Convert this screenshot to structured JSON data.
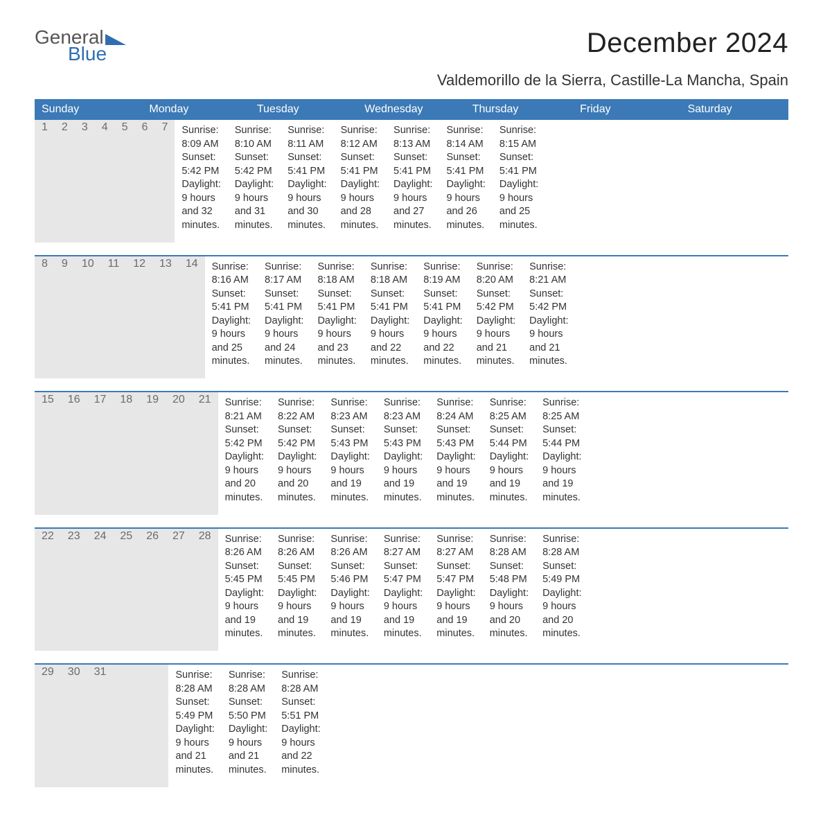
{
  "logo": {
    "line1": "General",
    "line2": "Blue",
    "tri_color": "#2f6fb0"
  },
  "title": "December 2024",
  "location": "Valdemorillo de la Sierra, Castille-La Mancha, Spain",
  "colors": {
    "header_bg": "#3b79b7",
    "header_text": "#ffffff",
    "daynum_bg": "#e7e7e7",
    "daynum_text": "#6a6a6a",
    "week_border": "#3b79b7",
    "body_text": "#333333",
    "background": "#ffffff"
  },
  "day_headers": [
    "Sunday",
    "Monday",
    "Tuesday",
    "Wednesday",
    "Thursday",
    "Friday",
    "Saturday"
  ],
  "weeks": [
    [
      {
        "n": "1",
        "sunrise": "Sunrise: 8:09 AM",
        "sunset": "Sunset: 5:42 PM",
        "d1": "Daylight: 9 hours",
        "d2": "and 32 minutes."
      },
      {
        "n": "2",
        "sunrise": "Sunrise: 8:10 AM",
        "sunset": "Sunset: 5:42 PM",
        "d1": "Daylight: 9 hours",
        "d2": "and 31 minutes."
      },
      {
        "n": "3",
        "sunrise": "Sunrise: 8:11 AM",
        "sunset": "Sunset: 5:41 PM",
        "d1": "Daylight: 9 hours",
        "d2": "and 30 minutes."
      },
      {
        "n": "4",
        "sunrise": "Sunrise: 8:12 AM",
        "sunset": "Sunset: 5:41 PM",
        "d1": "Daylight: 9 hours",
        "d2": "and 28 minutes."
      },
      {
        "n": "5",
        "sunrise": "Sunrise: 8:13 AM",
        "sunset": "Sunset: 5:41 PM",
        "d1": "Daylight: 9 hours",
        "d2": "and 27 minutes."
      },
      {
        "n": "6",
        "sunrise": "Sunrise: 8:14 AM",
        "sunset": "Sunset: 5:41 PM",
        "d1": "Daylight: 9 hours",
        "d2": "and 26 minutes."
      },
      {
        "n": "7",
        "sunrise": "Sunrise: 8:15 AM",
        "sunset": "Sunset: 5:41 PM",
        "d1": "Daylight: 9 hours",
        "d2": "and 25 minutes."
      }
    ],
    [
      {
        "n": "8",
        "sunrise": "Sunrise: 8:16 AM",
        "sunset": "Sunset: 5:41 PM",
        "d1": "Daylight: 9 hours",
        "d2": "and 25 minutes."
      },
      {
        "n": "9",
        "sunrise": "Sunrise: 8:17 AM",
        "sunset": "Sunset: 5:41 PM",
        "d1": "Daylight: 9 hours",
        "d2": "and 24 minutes."
      },
      {
        "n": "10",
        "sunrise": "Sunrise: 8:18 AM",
        "sunset": "Sunset: 5:41 PM",
        "d1": "Daylight: 9 hours",
        "d2": "and 23 minutes."
      },
      {
        "n": "11",
        "sunrise": "Sunrise: 8:18 AM",
        "sunset": "Sunset: 5:41 PM",
        "d1": "Daylight: 9 hours",
        "d2": "and 22 minutes."
      },
      {
        "n": "12",
        "sunrise": "Sunrise: 8:19 AM",
        "sunset": "Sunset: 5:41 PM",
        "d1": "Daylight: 9 hours",
        "d2": "and 22 minutes."
      },
      {
        "n": "13",
        "sunrise": "Sunrise: 8:20 AM",
        "sunset": "Sunset: 5:42 PM",
        "d1": "Daylight: 9 hours",
        "d2": "and 21 minutes."
      },
      {
        "n": "14",
        "sunrise": "Sunrise: 8:21 AM",
        "sunset": "Sunset: 5:42 PM",
        "d1": "Daylight: 9 hours",
        "d2": "and 21 minutes."
      }
    ],
    [
      {
        "n": "15",
        "sunrise": "Sunrise: 8:21 AM",
        "sunset": "Sunset: 5:42 PM",
        "d1": "Daylight: 9 hours",
        "d2": "and 20 minutes."
      },
      {
        "n": "16",
        "sunrise": "Sunrise: 8:22 AM",
        "sunset": "Sunset: 5:42 PM",
        "d1": "Daylight: 9 hours",
        "d2": "and 20 minutes."
      },
      {
        "n": "17",
        "sunrise": "Sunrise: 8:23 AM",
        "sunset": "Sunset: 5:43 PM",
        "d1": "Daylight: 9 hours",
        "d2": "and 19 minutes."
      },
      {
        "n": "18",
        "sunrise": "Sunrise: 8:23 AM",
        "sunset": "Sunset: 5:43 PM",
        "d1": "Daylight: 9 hours",
        "d2": "and 19 minutes."
      },
      {
        "n": "19",
        "sunrise": "Sunrise: 8:24 AM",
        "sunset": "Sunset: 5:43 PM",
        "d1": "Daylight: 9 hours",
        "d2": "and 19 minutes."
      },
      {
        "n": "20",
        "sunrise": "Sunrise: 8:25 AM",
        "sunset": "Sunset: 5:44 PM",
        "d1": "Daylight: 9 hours",
        "d2": "and 19 minutes."
      },
      {
        "n": "21",
        "sunrise": "Sunrise: 8:25 AM",
        "sunset": "Sunset: 5:44 PM",
        "d1": "Daylight: 9 hours",
        "d2": "and 19 minutes."
      }
    ],
    [
      {
        "n": "22",
        "sunrise": "Sunrise: 8:26 AM",
        "sunset": "Sunset: 5:45 PM",
        "d1": "Daylight: 9 hours",
        "d2": "and 19 minutes."
      },
      {
        "n": "23",
        "sunrise": "Sunrise: 8:26 AM",
        "sunset": "Sunset: 5:45 PM",
        "d1": "Daylight: 9 hours",
        "d2": "and 19 minutes."
      },
      {
        "n": "24",
        "sunrise": "Sunrise: 8:26 AM",
        "sunset": "Sunset: 5:46 PM",
        "d1": "Daylight: 9 hours",
        "d2": "and 19 minutes."
      },
      {
        "n": "25",
        "sunrise": "Sunrise: 8:27 AM",
        "sunset": "Sunset: 5:47 PM",
        "d1": "Daylight: 9 hours",
        "d2": "and 19 minutes."
      },
      {
        "n": "26",
        "sunrise": "Sunrise: 8:27 AM",
        "sunset": "Sunset: 5:47 PM",
        "d1": "Daylight: 9 hours",
        "d2": "and 19 minutes."
      },
      {
        "n": "27",
        "sunrise": "Sunrise: 8:28 AM",
        "sunset": "Sunset: 5:48 PM",
        "d1": "Daylight: 9 hours",
        "d2": "and 20 minutes."
      },
      {
        "n": "28",
        "sunrise": "Sunrise: 8:28 AM",
        "sunset": "Sunset: 5:49 PM",
        "d1": "Daylight: 9 hours",
        "d2": "and 20 minutes."
      }
    ],
    [
      {
        "n": "29",
        "sunrise": "Sunrise: 8:28 AM",
        "sunset": "Sunset: 5:49 PM",
        "d1": "Daylight: 9 hours",
        "d2": "and 21 minutes."
      },
      {
        "n": "30",
        "sunrise": "Sunrise: 8:28 AM",
        "sunset": "Sunset: 5:50 PM",
        "d1": "Daylight: 9 hours",
        "d2": "and 21 minutes."
      },
      {
        "n": "31",
        "sunrise": "Sunrise: 8:28 AM",
        "sunset": "Sunset: 5:51 PM",
        "d1": "Daylight: 9 hours",
        "d2": "and 22 minutes."
      },
      null,
      null,
      null,
      null
    ]
  ]
}
